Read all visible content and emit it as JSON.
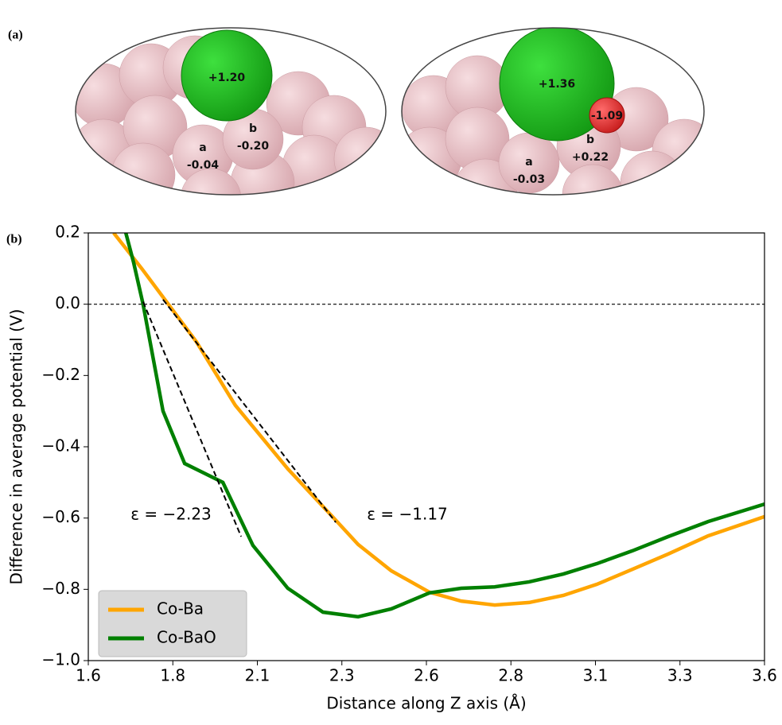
{
  "panel_a": {
    "label": "(a)",
    "left": {
      "ba": "+1.20",
      "b_label": "b",
      "b": "-0.20",
      "a_label": "a",
      "a": "-0.04"
    },
    "right": {
      "ba": "+1.36",
      "o": "-1.09",
      "b_label": "b",
      "b": "+0.22",
      "a_label": "a",
      "a": "-0.03"
    }
  },
  "chart_data": {
    "type": "line",
    "panel_label": "(b)",
    "x_label": "Distance along Z axis (Å)",
    "y_label": "Difference in average potential (V)",
    "xlim": [
      1.6,
      3.6
    ],
    "xticks": [
      1.6,
      {
        "value": 1.85,
        "label": "1.8"
      },
      2.1,
      {
        "value": 2.35,
        "label": "2.3"
      },
      2.6,
      {
        "value": 2.85,
        "label": "2.8"
      },
      3.1,
      {
        "value": 3.35,
        "label": "3.3"
      },
      3.6
    ],
    "ylim": [
      -1.0,
      0.2
    ],
    "yticks": [
      {
        "value": -1.0,
        "label": "−1.0"
      },
      {
        "value": -0.8,
        "label": "−0.8"
      },
      {
        "value": -0.6,
        "label": "−0.6"
      },
      {
        "value": -0.4,
        "label": "−0.4"
      },
      {
        "value": -0.2,
        "label": "−0.2"
      },
      {
        "value": 0.0,
        "label": "0.0"
      },
      0.2
    ],
    "reference_line": 0,
    "series": [
      {
        "name": "Co-Ba",
        "color": "#ffa500",
        "x": [
          1.675,
          1.758,
          1.92,
          2.035,
          2.19,
          2.327,
          2.398,
          2.496,
          2.609,
          2.703,
          2.802,
          2.904,
          3.005,
          3.104,
          3.209,
          3.315,
          3.433,
          3.6
        ],
        "values": [
          0.2,
          0.1,
          -0.106,
          -0.284,
          -0.462,
          -0.601,
          -0.674,
          -0.748,
          -0.808,
          -0.833,
          -0.844,
          -0.837,
          -0.817,
          -0.786,
          -0.744,
          -0.701,
          -0.65,
          -0.596
        ]
      },
      {
        "name": "Co-BaO",
        "color": "#008000",
        "x": [
          1.711,
          1.734,
          1.762,
          1.821,
          1.885,
          1.998,
          2.087,
          2.19,
          2.294,
          2.398,
          2.496,
          2.609,
          2.703,
          2.802,
          2.904,
          3.005,
          3.104,
          3.209,
          3.315,
          3.433,
          3.6
        ],
        "values": [
          0.2,
          0.117,
          0.0,
          -0.3,
          -0.447,
          -0.5,
          -0.677,
          -0.797,
          -0.864,
          -0.877,
          -0.855,
          -0.81,
          -0.797,
          -0.793,
          -0.779,
          -0.757,
          -0.728,
          -0.692,
          -0.652,
          -0.61,
          -0.561
        ]
      }
    ],
    "tangent_lines": [
      {
        "x": [
          1.762,
          2.052
        ],
        "values": [
          0.007,
          -0.652
        ]
      },
      {
        "x": [
          1.821,
          2.332
        ],
        "values": [
          0.013,
          -0.612
        ]
      }
    ],
    "annotations": [
      "ε = −2.23",
      "ε = −1.17"
    ],
    "legend": "lower left"
  }
}
